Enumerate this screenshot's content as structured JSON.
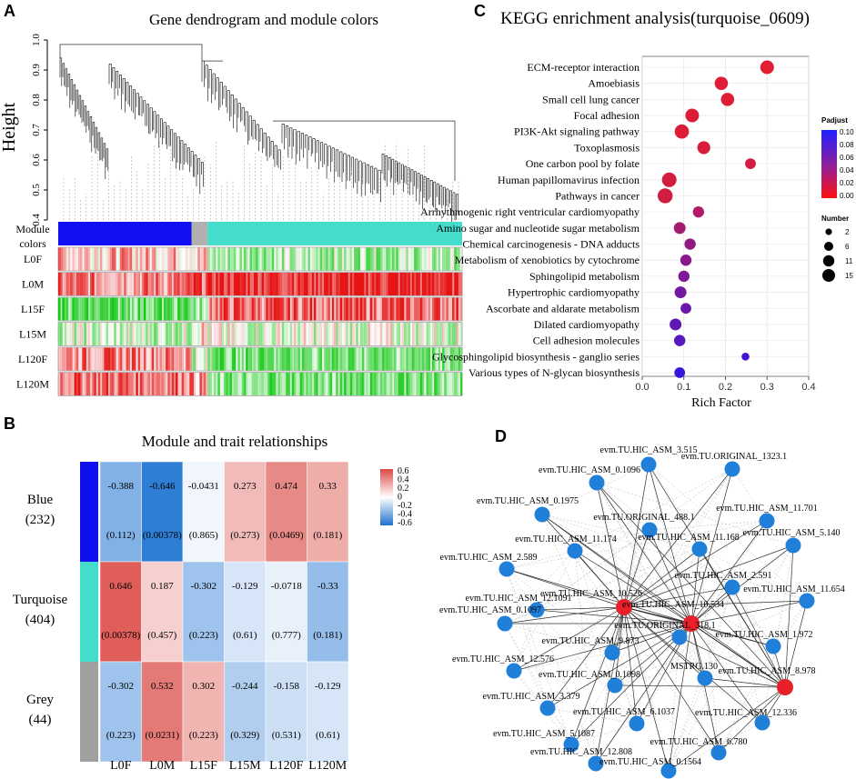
{
  "panels": {
    "A": "A",
    "B": "B",
    "C": "C",
    "D": "D"
  },
  "panel_a": {
    "title": "Gene dendrogram and module colors",
    "y_label": "Height",
    "y_ticks": [
      "1.0",
      "0.9",
      "0.8",
      "0.7",
      "0.6",
      "0.5",
      "0.4"
    ],
    "module_label_1": "Module",
    "module_label_2": "colors",
    "traits": [
      "L0F",
      "L0M",
      "L15F",
      "L15M",
      "L120F",
      "L120M"
    ],
    "trait_heatmap_tone": [
      [
        0.3,
        0.2,
        -0.3
      ],
      [
        0.5,
        0.7,
        0.9
      ],
      [
        -0.6,
        -0.4,
        0.6
      ],
      [
        -0.2,
        0.2,
        -0.1
      ],
      [
        0.5,
        -0.2,
        -0.5
      ],
      [
        0.6,
        0.4,
        -0.5
      ]
    ],
    "module_colors": [
      {
        "name": "blue",
        "color": "#1010f0",
        "share": 0.33
      },
      {
        "name": "grey",
        "color": "#b0b0b0",
        "share": 0.04
      },
      {
        "name": "turquoise",
        "color": "#44ddcc",
        "share": 0.63
      }
    ]
  },
  "panel_b": {
    "title": "Module and trait relationships",
    "columns": [
      "L0F",
      "L0M",
      "L15F",
      "L15M",
      "L120F",
      "L120M"
    ],
    "rows": [
      {
        "name": "Blue",
        "count": "(232)",
        "color": "#1010ee",
        "r": [
          -0.388,
          -0.646,
          -0.0431,
          0.273,
          0.474,
          0.33
        ],
        "labels": [
          "-0.388",
          "-0.646",
          "-0.0431",
          "0.273",
          "0.474",
          "0.33"
        ],
        "p": [
          "(0.112)",
          "(0.00378)",
          "(0.865)",
          "(0.273)",
          "(0.0469)",
          "(0.181)"
        ]
      },
      {
        "name": "Turquoise",
        "count": "(404)",
        "color": "#44ddcc",
        "r": [
          0.646,
          0.187,
          -0.302,
          -0.129,
          -0.0718,
          -0.33
        ],
        "labels": [
          "0.646",
          "0.187",
          "-0.302",
          "-0.129",
          "-0.0718",
          "-0.33"
        ],
        "p": [
          "(0.00378)",
          "(0.457)",
          "(0.223)",
          "(0.61)",
          "(0.777)",
          "(0.181)"
        ]
      },
      {
        "name": "Grey",
        "count": "(44)",
        "color": "#a0a0a0",
        "r": [
          -0.302,
          0.532,
          0.302,
          -0.244,
          -0.158,
          -0.129
        ],
        "labels": [
          "-0.302",
          "0.532",
          "0.302",
          "-0.244",
          "-0.158",
          "-0.129"
        ],
        "p": [
          "(0.223)",
          "(0.0231)",
          "(0.223)",
          "(0.329)",
          "(0.531)",
          "(0.61)"
        ]
      }
    ],
    "colorbar_ticks": [
      "0.6",
      "0.4",
      "0.2",
      "0",
      "-0.2",
      "-0.4",
      "-0.6"
    ]
  },
  "chart_data": {
    "type": "scatter",
    "title": "KEGG enrichment analysis(turquoise_0609)",
    "xlabel": "Rich Factor",
    "ylabel": "",
    "xlim": [
      0,
      0.4
    ],
    "x_ticks": [
      "0.0",
      "0.1",
      "0.2",
      "0.3",
      "0.4"
    ],
    "pathways": [
      {
        "name": "ECM-receptor interaction",
        "rich": 0.3,
        "padj": 0.005,
        "number": 12
      },
      {
        "name": "Amoebiasis",
        "rich": 0.19,
        "padj": 0.006,
        "number": 11
      },
      {
        "name": "Small cell lung cancer",
        "rich": 0.205,
        "padj": 0.006,
        "number": 11
      },
      {
        "name": "Focal adhesion",
        "rich": 0.12,
        "padj": 0.007,
        "number": 12
      },
      {
        "name": "PI3K-Akt signaling pathway",
        "rich": 0.095,
        "padj": 0.008,
        "number": 13
      },
      {
        "name": "Toxoplasmosis",
        "rich": 0.148,
        "padj": 0.01,
        "number": 10
      },
      {
        "name": "One carbon pool by folate",
        "rich": 0.26,
        "padj": 0.012,
        "number": 6
      },
      {
        "name": "Human papillomavirus infection",
        "rich": 0.065,
        "padj": 0.012,
        "number": 14
      },
      {
        "name": "Pathways in cancer",
        "rich": 0.055,
        "padj": 0.013,
        "number": 15
      },
      {
        "name": "Arrhythmogenic right ventricular cardiomyopathy",
        "rich": 0.135,
        "padj": 0.03,
        "number": 7
      },
      {
        "name": "Amino sugar and nucleotide sugar metabolism",
        "rich": 0.09,
        "padj": 0.035,
        "number": 8
      },
      {
        "name": "Chemical carcinogenesis - DNA adducts",
        "rich": 0.115,
        "padj": 0.045,
        "number": 7
      },
      {
        "name": "Metabolism of xenobiotics by cytochrome",
        "rich": 0.105,
        "padj": 0.05,
        "number": 7
      },
      {
        "name": "Sphingolipid metabolism",
        "rich": 0.1,
        "padj": 0.055,
        "number": 7
      },
      {
        "name": "Hypertrophic cardiomyopathy",
        "rich": 0.092,
        "padj": 0.06,
        "number": 8
      },
      {
        "name": "Ascorbate and aldarate metabolism",
        "rich": 0.105,
        "padj": 0.065,
        "number": 6
      },
      {
        "name": "Dilated cardiomyopathy",
        "rich": 0.08,
        "padj": 0.07,
        "number": 8
      },
      {
        "name": "Cell adhesion molecules",
        "rich": 0.09,
        "padj": 0.075,
        "number": 7
      },
      {
        "name": "Glycosphingolipid biosynthesis - ganglio series",
        "rich": 0.248,
        "padj": 0.085,
        "number": 2
      },
      {
        "name": "Various types of N-glycan biosynthesis",
        "rich": 0.09,
        "padj": 0.09,
        "number": 6
      }
    ],
    "padj_legend": {
      "title": "Padjust",
      "ticks": [
        "0.10",
        "0.08",
        "0.06",
        "0.04",
        "0.02",
        "0.00"
      ]
    },
    "number_legend": {
      "title": "Number",
      "values": [
        2,
        6,
        11,
        15
      ],
      "labels": [
        "2",
        "6",
        "11",
        "15"
      ]
    }
  },
  "panel_d": {
    "hubs": [
      "evm.TU.HIC_ASM_10.526",
      "evm.TU.HIC_ASM_10.534",
      "evm.TU.HIC_ASM_8.978"
    ],
    "nodes": [
      "evm.TU.HIC_ASM_3.515",
      "evm.TU.ORIGINAL_1323.1",
      "evm.TU.HIC_ASM_0.1096",
      "evm.TU.HIC_ASM_11.701",
      "evm.TU.HIC_ASM_0.1975",
      "evm.TU.ORIGINAL_488.1",
      "evm.TU.HIC_ASM_5.140",
      "evm.TU.HIC_ASM_11.174",
      "evm.TU.HIC_ASM_11.168",
      "evm.TU.HIC_ASM_2.589",
      "evm.TU.HIC_ASM_2.591",
      "evm.TU.HIC_ASM_12.1091",
      "evm.TU.HIC_ASM_11.654",
      "evm.TU.HIC_ASM_0.1097",
      "evm.TU.ORIGINAL_318.1",
      "evm.TU.HIC_ASM_9.873",
      "evm.TU.HIC_ASM_1.972",
      "evm.TU.HIC_ASM_12.576",
      "MSTRG.130",
      "evm.TU.HIC_ASM_3.379",
      "evm.TU.HIC_ASM_0.1098",
      "evm.TU.HIC_ASM_6.1037",
      "evm.TU.HIC_ASM_12.336",
      "evm.TU.HIC_ASM_5.1087",
      "evm.TU.HIC_ASM_6.780",
      "evm.TU.HIC_ASM_12.808",
      "evm.TU.HIC_ASM_0.1564"
    ]
  }
}
